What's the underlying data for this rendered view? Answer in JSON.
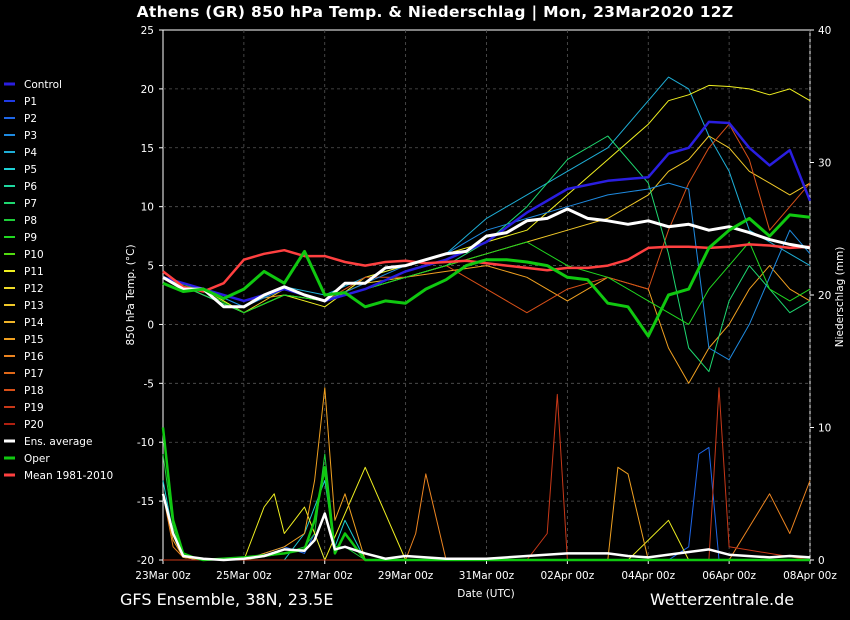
{
  "header": {
    "title": "Athens  (GR)  850 hPa Temp. & Niederschlag | Mon, 23Mar2020 12Z"
  },
  "footer": {
    "source": "GFS Ensemble, 38N, 23.5E",
    "site": "Wetterzentrale.de"
  },
  "chart_data": {
    "type": "line",
    "title": "Athens  (GR)  850 hPa Temp. & Niederschlag | Mon, 23Mar2020 12Z",
    "xlabel": "Date (UTC)",
    "ylabel": "850 hPa Temp. (°C)",
    "y2label": "Niederschlag (mm)",
    "ylim": [
      -20,
      25
    ],
    "y2lim": [
      0,
      40
    ],
    "yticks": [
      "25",
      "20",
      "15",
      "10",
      "5",
      "0",
      "-5",
      "-10",
      "-15",
      "-20"
    ],
    "y2ticks": [
      "40",
      "30",
      "20",
      "10",
      "0"
    ],
    "xticks": [
      "23Mar 00z",
      "25Mar 00z",
      "27Mar 00z",
      "29Mar 00z",
      "31Mar 00z",
      "02Apr 00z",
      "04Apr 00z",
      "06Apr 00z",
      "08Apr 00z"
    ],
    "xrange_hours": [
      0,
      384
    ],
    "grid": true,
    "legend_position": "left",
    "legend": [
      {
        "name": "Control",
        "color": "#2a1ee0"
      },
      {
        "name": "P1",
        "color": "#1f3be6"
      },
      {
        "name": "P2",
        "color": "#1e66e8"
      },
      {
        "name": "P3",
        "color": "#1e8ae0"
      },
      {
        "name": "P4",
        "color": "#1eaed6"
      },
      {
        "name": "P5",
        "color": "#1ed2d6"
      },
      {
        "name": "P6",
        "color": "#1ed8a0"
      },
      {
        "name": "P7",
        "color": "#1ed870"
      },
      {
        "name": "P8",
        "color": "#1ece3a"
      },
      {
        "name": "P9",
        "color": "#20d820"
      },
      {
        "name": "P10",
        "color": "#52dc10"
      },
      {
        "name": "P11",
        "color": "#f0f020"
      },
      {
        "name": "P12",
        "color": "#f0dc28"
      },
      {
        "name": "P13",
        "color": "#f0c828"
      },
      {
        "name": "P14",
        "color": "#f0b428"
      },
      {
        "name": "P15",
        "color": "#f0a020"
      },
      {
        "name": "P16",
        "color": "#ec8420"
      },
      {
        "name": "P17",
        "color": "#e06818"
      },
      {
        "name": "P18",
        "color": "#d85018"
      },
      {
        "name": "P19",
        "color": "#c83818"
      },
      {
        "name": "P20",
        "color": "#b02010"
      },
      {
        "name": "Ens. average",
        "color": "#ffffff"
      },
      {
        "name": "Oper",
        "color": "#10c810"
      },
      {
        "name": "Mean 1981-2010",
        "color": "#ff4040"
      }
    ],
    "series": [
      {
        "name": "Control",
        "color": "#2a1ee0",
        "width": 2.5,
        "x": [
          0,
          24,
          48,
          72,
          96,
          120,
          144,
          168,
          192,
          216,
          240,
          264,
          288,
          300,
          312,
          324,
          336,
          348,
          360,
          372,
          384
        ],
        "y": [
          4,
          3,
          2,
          3,
          2,
          3,
          4.5,
          5.5,
          7,
          9.5,
          11.5,
          12.2,
          12.5,
          14.5,
          15,
          17.2,
          17.1,
          15,
          13.5,
          14.8,
          10.5
        ]
      },
      {
        "name": "Ens. average",
        "color": "#ffffff",
        "width": 3,
        "x": [
          0,
          12,
          24,
          36,
          48,
          60,
          72,
          84,
          96,
          108,
          120,
          132,
          144,
          156,
          168,
          180,
          192,
          204,
          216,
          228,
          240,
          252,
          264,
          276,
          288,
          300,
          312,
          324,
          336,
          348,
          360,
          372,
          384
        ],
        "y": [
          4,
          3,
          3,
          1.5,
          1.5,
          2.5,
          3.2,
          2.5,
          2,
          3.5,
          3.5,
          4.8,
          5,
          5.5,
          6,
          6.2,
          7.5,
          7.8,
          8.8,
          9,
          9.8,
          9,
          8.8,
          8.5,
          8.8,
          8.3,
          8.5,
          8,
          8.3,
          7.8,
          7.2,
          6.8,
          6.5
        ]
      },
      {
        "name": "Oper",
        "color": "#10c810",
        "width": 3,
        "x": [
          0,
          12,
          24,
          36,
          48,
          60,
          72,
          84,
          96,
          108,
          120,
          132,
          144,
          156,
          168,
          180,
          192,
          204,
          216,
          228,
          240,
          252,
          264,
          276,
          288,
          300,
          312,
          324,
          336,
          348,
          360,
          372,
          384
        ],
        "y": [
          3.5,
          2.8,
          3,
          2.2,
          3,
          4.5,
          3.5,
          6.2,
          2.5,
          2.7,
          1.5,
          2,
          1.8,
          3,
          3.8,
          5,
          5.5,
          5.5,
          5.3,
          5,
          4,
          3.8,
          1.8,
          1.5,
          -1,
          2.5,
          3,
          6.5,
          8,
          9,
          7.5,
          9.3,
          9.1
        ]
      },
      {
        "name": "Mean 1981-2010",
        "color": "#ff4040",
        "width": 2.5,
        "x": [
          0,
          12,
          24,
          36,
          48,
          60,
          72,
          84,
          96,
          108,
          120,
          132,
          144,
          156,
          168,
          180,
          192,
          204,
          216,
          228,
          240,
          252,
          264,
          276,
          288,
          300,
          312,
          324,
          336,
          348,
          360,
          372,
          384
        ],
        "y": [
          4.5,
          3.2,
          2.8,
          3.5,
          5.5,
          6,
          6.3,
          5.8,
          5.8,
          5.3,
          5,
          5.3,
          5.4,
          5.2,
          5.3,
          5.4,
          5.2,
          5,
          4.8,
          4.6,
          4.8,
          4.8,
          5,
          5.5,
          6.5,
          6.6,
          6.6,
          6.5,
          6.6,
          6.8,
          6.7,
          6.5,
          6.6
        ]
      },
      {
        "name": "P4",
        "color": "#1eaed6",
        "width": 1,
        "x": [
          0,
          24,
          48,
          72,
          96,
          120,
          144,
          168,
          192,
          216,
          240,
          264,
          288,
          300,
          312,
          324,
          336,
          348,
          360,
          372,
          384
        ],
        "y": [
          4,
          3,
          1.5,
          3.2,
          2.5,
          4,
          5,
          6,
          9,
          11,
          13,
          15,
          19,
          21,
          20,
          16,
          13,
          8,
          7,
          6,
          5
        ]
      },
      {
        "name": "P11",
        "color": "#f0f020",
        "width": 1,
        "x": [
          0,
          24,
          48,
          72,
          96,
          120,
          144,
          168,
          192,
          216,
          240,
          264,
          288,
          300,
          312,
          324,
          336,
          348,
          360,
          372,
          384
        ],
        "y": [
          4,
          3,
          1,
          2.5,
          1.5,
          4,
          5,
          6,
          7,
          8,
          11,
          14,
          17,
          19,
          19.5,
          20.3,
          20.2,
          20,
          19.5,
          20,
          19
        ]
      },
      {
        "name": "P13",
        "color": "#f0c828",
        "width": 1,
        "x": [
          0,
          24,
          48,
          72,
          96,
          120,
          144,
          168,
          192,
          216,
          240,
          264,
          288,
          300,
          312,
          324,
          336,
          348,
          360,
          372,
          384
        ],
        "y": [
          4,
          2.5,
          1,
          3,
          2,
          3.5,
          4,
          5,
          6,
          7,
          8,
          9,
          11,
          13,
          14,
          16,
          15,
          13,
          12,
          11,
          12
        ]
      },
      {
        "name": "P15",
        "color": "#f0a020",
        "width": 1,
        "x": [
          0,
          24,
          48,
          72,
          96,
          120,
          144,
          168,
          192,
          216,
          240,
          264,
          288,
          300,
          312,
          324,
          336,
          348,
          360,
          372,
          384
        ],
        "y": [
          4,
          3,
          2,
          2.5,
          2,
          3,
          4,
          4.5,
          5,
          4,
          2,
          4,
          3,
          -2,
          -5,
          -2,
          0,
          3,
          5,
          3,
          2
        ]
      },
      {
        "name": "P18",
        "color": "#d85018",
        "width": 1,
        "x": [
          0,
          24,
          48,
          72,
          96,
          120,
          144,
          168,
          192,
          216,
          240,
          264,
          288,
          300,
          312,
          324,
          336,
          348,
          360,
          372,
          384
        ],
        "y": [
          4,
          3,
          2,
          3,
          2,
          4,
          4,
          5,
          3,
          1,
          3,
          4,
          3,
          8,
          12,
          15,
          17,
          14,
          8,
          10,
          12
        ]
      },
      {
        "name": "P7",
        "color": "#1ed870",
        "width": 1,
        "x": [
          0,
          24,
          48,
          72,
          96,
          120,
          144,
          168,
          192,
          216,
          240,
          264,
          288,
          300,
          312,
          324,
          336,
          348,
          360,
          372,
          384
        ],
        "y": [
          4,
          2.5,
          1,
          2.5,
          2,
          3,
          4,
          5,
          7,
          10,
          14,
          16,
          12,
          6,
          -2,
          -4,
          2,
          5,
          3,
          1,
          2
        ]
      },
      {
        "name": "P3",
        "color": "#1e8ae0",
        "width": 1,
        "x": [
          0,
          24,
          48,
          72,
          96,
          120,
          144,
          168,
          192,
          216,
          240,
          264,
          288,
          300,
          312,
          324,
          336,
          348,
          360,
          372,
          384
        ],
        "y": [
          4,
          3,
          1.5,
          3,
          2,
          3.5,
          5,
          6,
          8,
          9,
          10,
          11,
          11.5,
          12,
          11.5,
          -2,
          -3,
          0,
          4,
          8,
          6
        ]
      },
      {
        "name": "P9",
        "color": "#20d820",
        "width": 1,
        "x": [
          0,
          24,
          48,
          72,
          96,
          120,
          144,
          168,
          192,
          216,
          240,
          264,
          288,
          300,
          312,
          324,
          336,
          348,
          360,
          372,
          384
        ],
        "y": [
          4,
          2.8,
          1,
          2.5,
          2,
          3,
          4,
          5,
          6,
          7,
          5,
          4,
          2,
          1,
          0,
          3,
          5,
          7,
          3,
          2,
          3
        ]
      }
    ],
    "precip_series": [
      {
        "name": "P2",
        "color": "#1e66e8",
        "x": [
          0,
          6,
          12,
          18,
          24,
          48,
          72,
          84,
          90,
          96,
          120,
          144,
          168,
          216,
          240,
          300,
          312,
          318,
          324,
          330,
          336,
          384
        ],
        "y": [
          5,
          2,
          0.5,
          0,
          0,
          0,
          1,
          0.5,
          2,
          0,
          0,
          0,
          0,
          0,
          0,
          0,
          1,
          8,
          8.5,
          0,
          0,
          0
        ]
      },
      {
        "name": "P5",
        "color": "#1ed2d6",
        "x": [
          0,
          6,
          12,
          24,
          48,
          72,
          84,
          90,
          96,
          102,
          108,
          120,
          168,
          192,
          216,
          240,
          384
        ],
        "y": [
          6,
          2,
          0.2,
          0,
          0,
          0,
          2,
          4,
          6,
          1,
          3,
          0,
          0,
          0,
          0,
          0,
          0
        ]
      },
      {
        "name": "P8",
        "color": "#1ece3a",
        "x": [
          0,
          6,
          12,
          24,
          48,
          72,
          84,
          90,
          96,
          102,
          108,
          120,
          144,
          168,
          216,
          240,
          384
        ],
        "y": [
          8,
          2.5,
          0.3,
          0,
          0,
          0.5,
          1,
          2,
          8,
          1,
          1,
          0,
          0,
          0,
          0,
          0,
          0
        ]
      },
      {
        "name": "P11",
        "color": "#f0f020",
        "x": [
          0,
          6,
          12,
          24,
          48,
          60,
          66,
          72,
          78,
          84,
          96,
          120,
          144,
          168,
          216,
          240,
          264,
          276,
          300,
          312,
          384
        ],
        "y": [
          5,
          2,
          0.2,
          0,
          0,
          4,
          5,
          2,
          3,
          4,
          0,
          7,
          0,
          0,
          0,
          0,
          0,
          0,
          3,
          0,
          0
        ]
      },
      {
        "name": "P15",
        "color": "#f0a020",
        "x": [
          0,
          6,
          12,
          24,
          48,
          72,
          84,
          90,
          96,
          102,
          108,
          120,
          144,
          168,
          216,
          240,
          264,
          270,
          276,
          288,
          384
        ],
        "y": [
          5,
          1.5,
          0.2,
          0,
          0,
          1,
          2,
          6,
          13,
          3,
          5,
          0,
          0,
          0,
          0,
          0,
          0,
          7,
          6.5,
          0,
          0
        ]
      },
      {
        "name": "P16",
        "color": "#ec8420",
        "x": [
          0,
          6,
          12,
          24,
          48,
          72,
          96,
          144,
          150,
          156,
          168,
          216,
          240,
          300,
          312,
          336,
          360,
          372,
          384
        ],
        "y": [
          5,
          1,
          0.2,
          0,
          0,
          0,
          0,
          0,
          2,
          6.5,
          0,
          0,
          0,
          0,
          0,
          0,
          5,
          2,
          6
        ]
      },
      {
        "name": "P19",
        "color": "#c83818",
        "x": [
          0,
          24,
          48,
          72,
          96,
          144,
          168,
          216,
          228,
          234,
          240,
          300,
          324,
          330,
          336,
          384
        ],
        "y": [
          0,
          0,
          0,
          0,
          0,
          0,
          0,
          0,
          2,
          12.5,
          0,
          0,
          0,
          13,
          1,
          0
        ]
      },
      {
        "name": "Oper",
        "color": "#10c810",
        "x": [
          0,
          6,
          12,
          18,
          24,
          48,
          72,
          84,
          90,
          96,
          102,
          108,
          120,
          144,
          168,
          216,
          240,
          384
        ],
        "y": [
          10,
          3,
          0.5,
          0.2,
          0,
          0.2,
          0.5,
          0.8,
          3,
          7,
          0.5,
          2,
          0,
          0,
          0,
          0,
          0,
          0
        ]
      },
      {
        "name": "Ens. average",
        "color": "#ffffff",
        "x": [
          0,
          6,
          12,
          24,
          36,
          48,
          60,
          72,
          84,
          90,
          96,
          102,
          108,
          120,
          132,
          144,
          168,
          192,
          216,
          240,
          264,
          276,
          288,
          312,
          324,
          336,
          360,
          372,
          384
        ],
        "y": [
          5,
          2,
          0.3,
          0.1,
          0,
          0.1,
          0.3,
          0.8,
          0.7,
          1.5,
          3.5,
          0.8,
          1,
          0.5,
          0.1,
          0.3,
          0.1,
          0.1,
          0.3,
          0.5,
          0.5,
          0.3,
          0.2,
          0.6,
          0.8,
          0.4,
          0.2,
          0.3,
          0.2
        ]
      }
    ]
  }
}
